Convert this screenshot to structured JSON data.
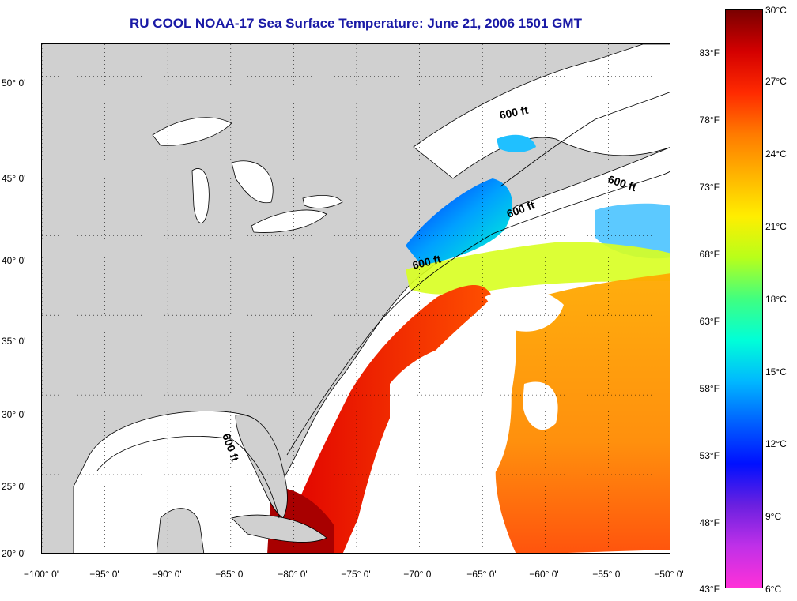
{
  "title": "RU COOL  NOAA-17  Sea Surface Temperature:  June 21, 2006 1501 GMT",
  "map": {
    "lon_range": [
      -100,
      -50
    ],
    "lat_range": [
      20,
      52
    ],
    "lat_labels": [
      "50° 0'",
      "45° 0'",
      "40° 0'",
      "35° 0'",
      "30° 0'",
      "25° 0'",
      "20° 0'"
    ],
    "lat_values": [
      50,
      45,
      40,
      35,
      30,
      25,
      20
    ],
    "lon_labels": [
      "−100° 0'",
      "−95° 0'",
      "−90° 0'",
      "−85° 0'",
      "−80° 0'",
      "−75° 0'",
      "−70° 0'",
      "−65° 0'",
      "−60° 0'",
      "−55° 0'",
      "−50° 0'"
    ],
    "lon_values": [
      -100,
      -95,
      -90,
      -85,
      -80,
      -75,
      -70,
      -65,
      -60,
      -55,
      -50
    ],
    "depth_labels": [
      "600 ft",
      "600 ft",
      "600 ft",
      "600 ft",
      "600 ft"
    ],
    "land_color": "#d0d0d0",
    "cloud_color": "#ffffff"
  },
  "colorbar": {
    "fahrenheit_labels": [
      "83°F",
      "78°F",
      "73°F",
      "68°F",
      "63°F",
      "58°F",
      "53°F",
      "48°F",
      "43°F"
    ],
    "fahrenheit_values": [
      83,
      78,
      73,
      68,
      63,
      58,
      53,
      48,
      43
    ],
    "celsius_labels": [
      "30°C",
      "27°C",
      "24°C",
      "21°C",
      "18°C",
      "15°C",
      "12°C",
      "9°C",
      "6°C"
    ],
    "celsius_values": [
      30,
      27,
      24,
      21,
      18,
      15,
      12,
      9,
      6
    ],
    "colors": [
      "#7a0000",
      "#d40000",
      "#ff2a00",
      "#ff7a00",
      "#ffb400",
      "#ffee00",
      "#b8ff1a",
      "#40ff80",
      "#00ffd8",
      "#00b8ff",
      "#0060ff",
      "#0010ff",
      "#6a20e0",
      "#c030e8",
      "#ff30d8"
    ]
  }
}
